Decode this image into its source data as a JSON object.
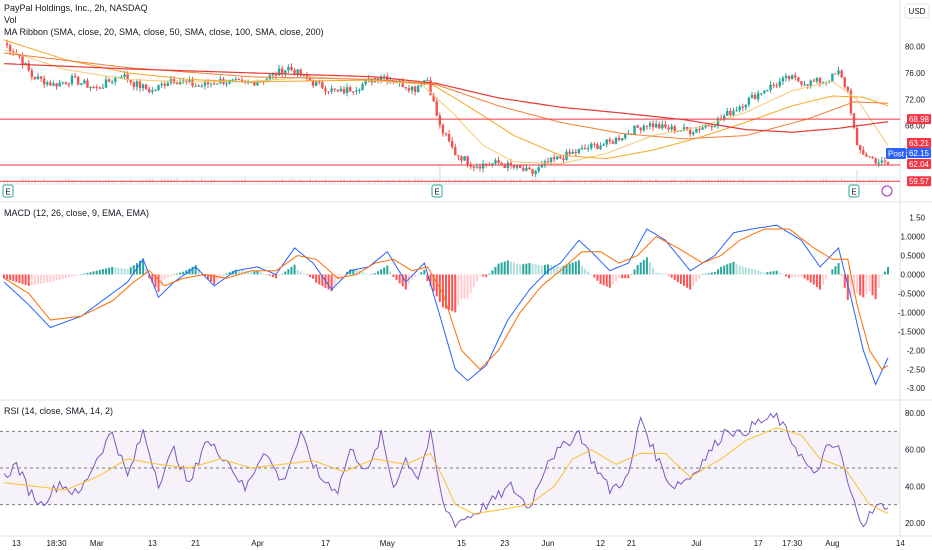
{
  "header": {
    "title": "PayPal Holdings, Inc., 2h, NASDAQ",
    "vol_label": "Vol",
    "ma_label": "MA Ribbon (SMA, close, 20, SMA, close, 50, SMA, close, 100, SMA, close, 200)",
    "currency": "USD"
  },
  "colors": {
    "up": "#26a69a",
    "down": "#ef5350",
    "sma20": "#f7c873",
    "sma50": "#f5a623",
    "sma100": "#f57c3a",
    "sma200": "#e53935",
    "macd": "#2962ff",
    "signal": "#ff6d00",
    "rsi": "#7e57c2",
    "rsi_ma": "#fbc02d",
    "hline": "#f23645"
  },
  "chart_data": [
    {
      "type": "candlestick",
      "title": "PayPal Holdings, Inc., 2h, NASDAQ",
      "ylim": [
        59,
        82.5
      ],
      "y_ticks": [
        "80.00",
        "76.00",
        "72.00",
        "68.00",
        "64.00"
      ],
      "x_ticks": [
        "13",
        "18:30",
        "Mar",
        "13",
        "21",
        "Apr",
        "17",
        "May",
        "15",
        "23",
        "Jun",
        "12",
        "21",
        "Jul",
        "17",
        "17:30",
        "Aug",
        "14"
      ],
      "anchors": [
        [
          0,
          80.5
        ],
        [
          5,
          78.5
        ],
        [
          9,
          75.5
        ],
        [
          16,
          74.2
        ],
        [
          22,
          75.0
        ],
        [
          30,
          73.6
        ],
        [
          38,
          75.8
        ],
        [
          42,
          74.4
        ],
        [
          48,
          73.2
        ],
        [
          54,
          75.1
        ],
        [
          63,
          74.0
        ],
        [
          70,
          74.8
        ],
        [
          78,
          74.3
        ],
        [
          85,
          75.2
        ],
        [
          92,
          76.8
        ],
        [
          100,
          74.5
        ],
        [
          108,
          73.0
        ],
        [
          115,
          74.0
        ],
        [
          122,
          75.7
        ],
        [
          130,
          74.1
        ],
        [
          133,
          73.6
        ],
        [
          135,
          74.8
        ],
        [
          137,
          75.0
        ],
        [
          141,
          67.8
        ],
        [
          146,
          63.8
        ],
        [
          152,
          62.0
        ],
        [
          160,
          62.3
        ],
        [
          166,
          61.5
        ],
        [
          171,
          60.8
        ],
        [
          176,
          62.4
        ],
        [
          182,
          63.5
        ],
        [
          190,
          64.8
        ],
        [
          196,
          65.4
        ],
        [
          202,
          67.0
        ],
        [
          208,
          68.3
        ],
        [
          214,
          67.6
        ],
        [
          222,
          67.2
        ],
        [
          230,
          68.5
        ],
        [
          238,
          71.0
        ],
        [
          246,
          73.5
        ],
        [
          254,
          75.2
        ],
        [
          260,
          74.5
        ],
        [
          266,
          74.8
        ],
        [
          270,
          76.0
        ],
        [
          273,
          73.2
        ],
        [
          276,
          64.5
        ],
        [
          280,
          63.2
        ],
        [
          284,
          62.3
        ],
        [
          286,
          62.15
        ]
      ],
      "horizontal_levels": [
        68.98,
        62.04,
        59.57
      ],
      "price_tags": [
        "68.98",
        "63.21",
        "62.15",
        "62.04",
        "59.57"
      ],
      "post_label": "Post",
      "series": [
        {
          "name": "SMA 20",
          "anchors": [
            [
              0,
              79.5
            ],
            [
              20,
              76.5
            ],
            [
              40,
              75.0
            ],
            [
              60,
              74.6
            ],
            [
              80,
              74.7
            ],
            [
              100,
              75.4
            ],
            [
              120,
              74.8
            ],
            [
              135,
              74.3
            ],
            [
              145,
              70.0
            ],
            [
              155,
              65.0
            ],
            [
              165,
              62.5
            ],
            [
              180,
              62.2
            ],
            [
              195,
              63.8
            ],
            [
              210,
              66.5
            ],
            [
              225,
              67.8
            ],
            [
              240,
              70.0
            ],
            [
              255,
              73.3
            ],
            [
              268,
              74.7
            ],
            [
              276,
              72.0
            ],
            [
              286,
              65.0
            ]
          ]
        },
        {
          "name": "SMA 50",
          "anchors": [
            [
              0,
              81.0
            ],
            [
              20,
              78.0
            ],
            [
              40,
              76.0
            ],
            [
              60,
              75.0
            ],
            [
              80,
              74.6
            ],
            [
              100,
              74.8
            ],
            [
              120,
              74.9
            ],
            [
              138,
              74.4
            ],
            [
              150,
              71.0
            ],
            [
              165,
              66.5
            ],
            [
              180,
              63.5
            ],
            [
              195,
              63.0
            ],
            [
              210,
              64.3
            ],
            [
              225,
              66.2
            ],
            [
              240,
              68.5
            ],
            [
              255,
              71.0
            ],
            [
              268,
              72.5
            ],
            [
              278,
              72.3
            ],
            [
              286,
              71.0
            ]
          ]
        },
        {
          "name": "SMA 100",
          "anchors": [
            [
              0,
              79.0
            ],
            [
              40,
              76.8
            ],
            [
              80,
              75.4
            ],
            [
              120,
              75.0
            ],
            [
              140,
              74.2
            ],
            [
              160,
              71.0
            ],
            [
              180,
              68.5
            ],
            [
              200,
              66.8
            ],
            [
              220,
              66.0
            ],
            [
              240,
              66.5
            ],
            [
              260,
              69.0
            ],
            [
              275,
              71.6
            ],
            [
              286,
              71.4
            ]
          ]
        },
        {
          "name": "SMA 200",
          "anchors": [
            [
              0,
              77.4
            ],
            [
              40,
              76.6
            ],
            [
              80,
              76.0
            ],
            [
              120,
              75.4
            ],
            [
              140,
              74.4
            ],
            [
              160,
              72.2
            ],
            [
              180,
              70.8
            ],
            [
              200,
              69.9
            ],
            [
              220,
              68.9
            ],
            [
              240,
              67.4
            ],
            [
              255,
              67.0
            ],
            [
              270,
              67.6
            ],
            [
              286,
              68.6
            ]
          ]
        }
      ]
    },
    {
      "type": "histogram+line",
      "title": "MACD (12, 26, close, 9, EMA, EMA)",
      "ylim": [
        -3.1,
        1.7
      ],
      "y_ticks": [
        "1.50",
        "1.0000",
        "0.5000",
        "0.0000",
        "-0.5000",
        "-1.0000",
        "-1.5000",
        "-2.00",
        "-2.50",
        "-3.00"
      ],
      "macd_anchors": [
        [
          0,
          -0.2
        ],
        [
          8,
          -0.8
        ],
        [
          15,
          -1.4
        ],
        [
          25,
          -1.1
        ],
        [
          35,
          -0.5
        ],
        [
          40,
          -0.2
        ],
        [
          45,
          0.4
        ],
        [
          50,
          -0.6
        ],
        [
          55,
          -0.2
        ],
        [
          62,
          0.2
        ],
        [
          68,
          -0.3
        ],
        [
          75,
          0.1
        ],
        [
          82,
          0.2
        ],
        [
          88,
          0.0
        ],
        [
          94,
          0.7
        ],
        [
          100,
          0.3
        ],
        [
          106,
          -0.4
        ],
        [
          112,
          0.1
        ],
        [
          118,
          0.2
        ],
        [
          124,
          0.6
        ],
        [
          130,
          -0.2
        ],
        [
          136,
          0.3
        ],
        [
          140,
          -0.8
        ],
        [
          146,
          -2.5
        ],
        [
          150,
          -2.8
        ],
        [
          156,
          -2.4
        ],
        [
          163,
          -1.2
        ],
        [
          170,
          -0.4
        ],
        [
          176,
          0.1
        ],
        [
          180,
          0.3
        ],
        [
          186,
          0.9
        ],
        [
          190,
          0.6
        ],
        [
          196,
          0.1
        ],
        [
          202,
          0.3
        ],
        [
          208,
          1.2
        ],
        [
          214,
          0.9
        ],
        [
          222,
          0.1
        ],
        [
          230,
          0.5
        ],
        [
          236,
          1.1
        ],
        [
          242,
          1.2
        ],
        [
          250,
          1.3
        ],
        [
          258,
          0.9
        ],
        [
          264,
          0.2
        ],
        [
          270,
          0.7
        ],
        [
          274,
          -0.6
        ],
        [
          278,
          -2.0
        ],
        [
          282,
          -2.9
        ],
        [
          286,
          -2.2
        ]
      ],
      "signal_anchors": [
        [
          0,
          -0.1
        ],
        [
          8,
          -0.5
        ],
        [
          15,
          -1.2
        ],
        [
          25,
          -1.1
        ],
        [
          35,
          -0.7
        ],
        [
          42,
          -0.2
        ],
        [
          47,
          0.1
        ],
        [
          52,
          -0.3
        ],
        [
          58,
          -0.1
        ],
        [
          65,
          0.0
        ],
        [
          72,
          -0.1
        ],
        [
          80,
          0.1
        ],
        [
          88,
          0.1
        ],
        [
          95,
          0.5
        ],
        [
          101,
          0.4
        ],
        [
          108,
          -0.1
        ],
        [
          114,
          0.0
        ],
        [
          120,
          0.3
        ],
        [
          126,
          0.4
        ],
        [
          132,
          0.1
        ],
        [
          137,
          0.2
        ],
        [
          142,
          -0.5
        ],
        [
          148,
          -2.0
        ],
        [
          154,
          -2.5
        ],
        [
          160,
          -2.0
        ],
        [
          167,
          -1.0
        ],
        [
          174,
          -0.3
        ],
        [
          180,
          0.1
        ],
        [
          187,
          0.6
        ],
        [
          193,
          0.6
        ],
        [
          199,
          0.3
        ],
        [
          205,
          0.5
        ],
        [
          211,
          1.0
        ],
        [
          218,
          0.7
        ],
        [
          226,
          0.3
        ],
        [
          232,
          0.5
        ],
        [
          238,
          0.9
        ],
        [
          246,
          1.2
        ],
        [
          254,
          1.2
        ],
        [
          262,
          0.7
        ],
        [
          268,
          0.4
        ],
        [
          273,
          0.4
        ],
        [
          276,
          -0.8
        ],
        [
          280,
          -2.0
        ],
        [
          284,
          -2.5
        ],
        [
          286,
          -2.4
        ]
      ]
    },
    {
      "type": "line",
      "title": "RSI (14, close, SMA, 14, 2)",
      "ylim": [
        15,
        85
      ],
      "y_ticks": [
        "80.00",
        "60.00",
        "40.00",
        "20.00"
      ],
      "levels": [
        70,
        50,
        30
      ],
      "rsi_anchors": [
        [
          0,
          45
        ],
        [
          4,
          52
        ],
        [
          8,
          38
        ],
        [
          12,
          30
        ],
        [
          18,
          42
        ],
        [
          24,
          35
        ],
        [
          30,
          55
        ],
        [
          35,
          70
        ],
        [
          40,
          45
        ],
        [
          45,
          70
        ],
        [
          50,
          42
        ],
        [
          55,
          60
        ],
        [
          60,
          40
        ],
        [
          65,
          65
        ],
        [
          72,
          55
        ],
        [
          78,
          38
        ],
        [
          84,
          60
        ],
        [
          90,
          42
        ],
        [
          96,
          68
        ],
        [
          102,
          45
        ],
        [
          108,
          38
        ],
        [
          112,
          60
        ],
        [
          118,
          48
        ],
        [
          122,
          68
        ],
        [
          126,
          40
        ],
        [
          130,
          55
        ],
        [
          134,
          45
        ],
        [
          138,
          68
        ],
        [
          142,
          30
        ],
        [
          146,
          20
        ],
        [
          152,
          25
        ],
        [
          158,
          32
        ],
        [
          164,
          40
        ],
        [
          170,
          28
        ],
        [
          176,
          55
        ],
        [
          180,
          60
        ],
        [
          186,
          70
        ],
        [
          190,
          55
        ],
        [
          196,
          38
        ],
        [
          202,
          45
        ],
        [
          206,
          78
        ],
        [
          210,
          60
        ],
        [
          216,
          40
        ],
        [
          222,
          45
        ],
        [
          228,
          58
        ],
        [
          234,
          72
        ],
        [
          238,
          68
        ],
        [
          244,
          75
        ],
        [
          250,
          78
        ],
        [
          256,
          62
        ],
        [
          262,
          45
        ],
        [
          266,
          60
        ],
        [
          270,
          62
        ],
        [
          274,
          35
        ],
        [
          278,
          20
        ],
        [
          282,
          28
        ],
        [
          286,
          30
        ]
      ],
      "rsi_ma_anchors": [
        [
          0,
          42
        ],
        [
          10,
          40
        ],
        [
          20,
          38
        ],
        [
          30,
          45
        ],
        [
          40,
          55
        ],
        [
          50,
          52
        ],
        [
          60,
          50
        ],
        [
          70,
          55
        ],
        [
          80,
          50
        ],
        [
          90,
          52
        ],
        [
          100,
          54
        ],
        [
          110,
          48
        ],
        [
          120,
          55
        ],
        [
          130,
          52
        ],
        [
          138,
          58
        ],
        [
          142,
          45
        ],
        [
          146,
          30
        ],
        [
          152,
          25
        ],
        [
          160,
          27
        ],
        [
          170,
          30
        ],
        [
          178,
          40
        ],
        [
          184,
          55
        ],
        [
          190,
          60
        ],
        [
          198,
          52
        ],
        [
          206,
          58
        ],
        [
          214,
          58
        ],
        [
          222,
          45
        ],
        [
          232,
          55
        ],
        [
          240,
          65
        ],
        [
          250,
          72
        ],
        [
          258,
          68
        ],
        [
          264,
          55
        ],
        [
          272,
          50
        ],
        [
          276,
          40
        ],
        [
          280,
          30
        ],
        [
          286,
          25
        ]
      ]
    }
  ]
}
